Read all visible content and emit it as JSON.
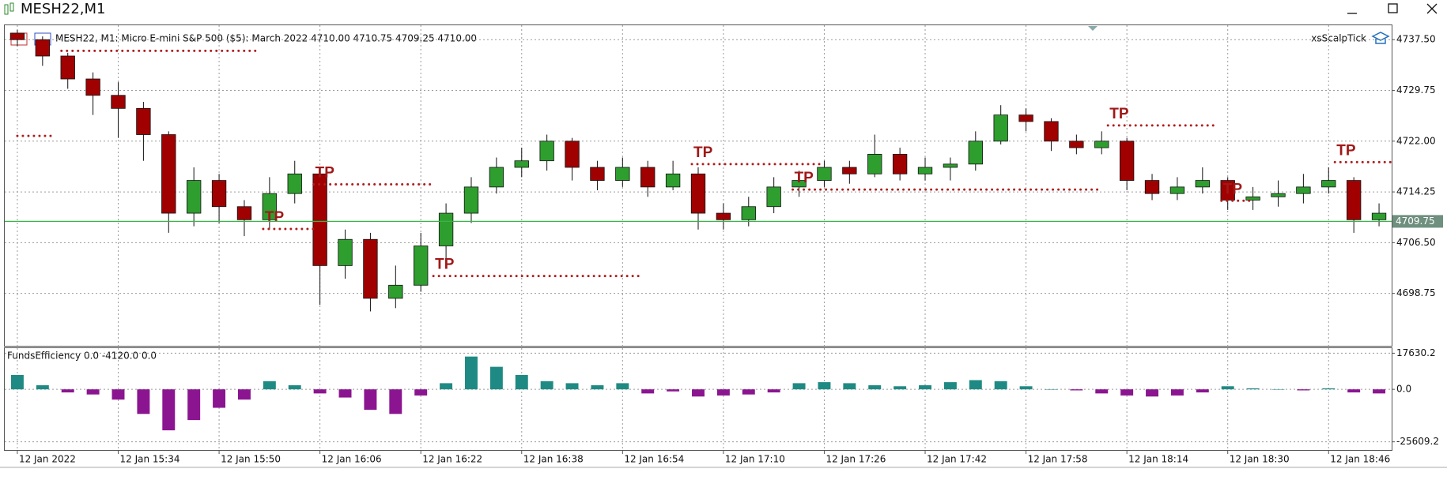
{
  "window": {
    "title": "MESH22,M1"
  },
  "chart_data": [
    {
      "type": "candlestick",
      "title": "MESH22, M1:  Micro E-mini S&P 500 ($5): March 2022  4710.00 4710.75 4709.25 4710.00",
      "expert": "xsScalpTick",
      "x": [
        0,
        4,
        8,
        12,
        16,
        20,
        24,
        28,
        32,
        36,
        40,
        44,
        48,
        52,
        56,
        60,
        64,
        68,
        72,
        76,
        80,
        84,
        88,
        92,
        96,
        100,
        104,
        108,
        112,
        116,
        120,
        124,
        128,
        132,
        136,
        140,
        144,
        148,
        152,
        156,
        160,
        164,
        168,
        172,
        176,
        180,
        184,
        188,
        192,
        196,
        200,
        204,
        208,
        212,
        216
      ],
      "open": [
        4738.5,
        4737.5,
        4735,
        4731.5,
        4729,
        4727,
        4723,
        4711,
        4716,
        4712,
        4710,
        4714,
        4717,
        4703,
        4707,
        4698,
        4700,
        4706,
        4711,
        4715,
        4718,
        4719,
        4722,
        4718,
        4716,
        4718,
        4715,
        4717,
        4711,
        4710,
        4712,
        4715,
        4716,
        4718,
        4717,
        4720,
        4717,
        4718,
        4718.5,
        4722,
        4726,
        4725,
        4722,
        4721,
        4722,
        4716,
        4714,
        4715,
        4716,
        4713,
        4713.5,
        4714,
        4715,
        4716,
        4710
      ],
      "high": [
        4739,
        4738,
        4735.5,
        4732.5,
        4731,
        4728,
        4723.5,
        4718,
        4717,
        4713,
        4716.5,
        4719,
        4717.5,
        4708.5,
        4708,
        4703,
        4708,
        4712.5,
        4716.5,
        4719.5,
        4721,
        4723,
        4722.5,
        4719,
        4719.5,
        4719,
        4719,
        4718,
        4712.5,
        4713.5,
        4716.5,
        4717.5,
        4719,
        4719,
        4723,
        4721,
        4719.5,
        4719.5,
        4723.5,
        4727.5,
        4727,
        4725.5,
        4723,
        4723.5,
        4722.5,
        4717,
        4716.5,
        4718,
        4716.5,
        4715,
        4716,
        4717,
        4718,
        4716.5,
        4712.5
      ],
      "low": [
        4736.5,
        4733.5,
        4730,
        4726,
        4722.5,
        4719,
        4708,
        4709,
        4709.5,
        4707.5,
        4708.5,
        4712.5,
        4697,
        4701,
        4696,
        4696.5,
        4699,
        4703,
        4709.5,
        4714,
        4716.5,
        4717.5,
        4716,
        4714.5,
        4715,
        4713.5,
        4714.5,
        4708.5,
        4708.5,
        4709,
        4711,
        4713.5,
        4715,
        4715.5,
        4716.5,
        4716,
        4716,
        4716,
        4717.5,
        4721.5,
        4723.5,
        4720.5,
        4720,
        4720,
        4714.5,
        4713,
        4713,
        4714,
        4711.5,
        4711.5,
        4712,
        4712.5,
        4714,
        4708,
        4709
      ],
      "close": [
        4737.5,
        4735,
        4731.5,
        4729,
        4727,
        4723,
        4711,
        4716,
        4712,
        4710,
        4714,
        4717,
        4703,
        4707,
        4698,
        4700,
        4706,
        4711,
        4715,
        4718,
        4719,
        4722,
        4718,
        4716,
        4718,
        4715,
        4717,
        4711,
        4710,
        4712,
        4715,
        4716,
        4718,
        4717,
        4720,
        4717,
        4718,
        4718.5,
        4722,
        4726,
        4725,
        4722,
        4721,
        4722,
        4716,
        4714,
        4715,
        4716,
        4713,
        4713.5,
        4714,
        4715,
        4716,
        4710,
        4711
      ],
      "up_color": "#2e9e2e",
      "down_color": "#a00000",
      "wick_color": "#111111",
      "xlim": [
        -2,
        218
      ],
      "xticks": [
        {
          "value": 0,
          "label": "12 Jan 2022"
        },
        {
          "value": 16,
          "label": "12 Jan 15:34"
        },
        {
          "value": 32,
          "label": "12 Jan 15:50"
        },
        {
          "value": 48,
          "label": "12 Jan 16:06"
        },
        {
          "value": 64,
          "label": "12 Jan 16:22"
        },
        {
          "value": 80,
          "label": "12 Jan 16:38"
        },
        {
          "value": 96,
          "label": "12 Jan 16:54"
        },
        {
          "value": 112,
          "label": "12 Jan 17:10"
        },
        {
          "value": 128,
          "label": "12 Jan 17:26"
        },
        {
          "value": 144,
          "label": "12 Jan 17:42"
        },
        {
          "value": 160,
          "label": "12 Jan 17:58"
        },
        {
          "value": 176,
          "label": "12 Jan 18:14"
        },
        {
          "value": 192,
          "label": "12 Jan 18:30"
        },
        {
          "value": 208,
          "label": "12 Jan 18:46"
        }
      ],
      "ylim": [
        4690.75,
        4739.7
      ],
      "yticks": [
        {
          "value": 4737.5,
          "label": "4737.50"
        },
        4729.75,
        {
          "value": 4722,
          "label": "4722.00"
        },
        4714.25,
        {
          "value": 4706.5,
          "label": "4706.50"
        },
        4698.75
      ],
      "grid": true,
      "last_price": 4709.75,
      "last_price_color": "#3cb34a",
      "level_color": "#b01c1c",
      "levels": [
        {
          "price": 4735.8,
          "x0": 7,
          "x1": 38
        },
        {
          "price": 4722.8,
          "x0": 0,
          "x1": 6
        },
        {
          "price": 4715.4,
          "x0": 47,
          "x1": 66,
          "label": "TP"
        },
        {
          "price": 4708.6,
          "x0": 39,
          "x1": 47,
          "label": "TP"
        },
        {
          "price": 4701.4,
          "x0": 66,
          "x1": 99,
          "label": "TP"
        },
        {
          "price": 4718.5,
          "x0": 107,
          "x1": 128,
          "label": "TP"
        },
        {
          "price": 4714.6,
          "x0": 123,
          "x1": 172,
          "label": "TP"
        },
        {
          "price": 4724.4,
          "x0": 173,
          "x1": 190,
          "label": "TP"
        },
        {
          "price": 4712.9,
          "x0": 191,
          "x1": 196,
          "label": "TP"
        },
        {
          "price": 4718.8,
          "x0": 209,
          "x1": 218,
          "label": "TP"
        }
      ]
    },
    {
      "type": "bar",
      "title": "FundsEfficiency 0.0 -4120.0 0.0",
      "x": [
        0,
        4,
        8,
        12,
        16,
        20,
        24,
        28,
        32,
        36,
        40,
        44,
        48,
        52,
        56,
        60,
        64,
        68,
        72,
        76,
        80,
        84,
        88,
        92,
        96,
        100,
        104,
        108,
        112,
        116,
        120,
        124,
        128,
        132,
        136,
        140,
        144,
        148,
        152,
        156,
        160,
        164,
        168,
        172,
        176,
        180,
        184,
        188,
        192,
        196,
        200,
        204,
        208,
        212,
        216
      ],
      "values": [
        7000,
        2000,
        -1500,
        -2500,
        -5000,
        -12000,
        -20000,
        -15000,
        -9000,
        -5000,
        4000,
        2000,
        -2000,
        -4000,
        -10000,
        -12000,
        -3000,
        3000,
        16000,
        11000,
        7000,
        4000,
        3000,
        2000,
        3000,
        -2000,
        -1000,
        -3500,
        -3000,
        -2500,
        -1500,
        3000,
        3500,
        3000,
        2000,
        1500,
        2000,
        3500,
        4500,
        4000,
        1500,
        0,
        -500,
        -2000,
        -3000,
        -3500,
        -3000,
        -1500,
        1500,
        500,
        0,
        -500,
        500,
        -1500,
        -2000
      ],
      "pos_color": "#1f8a84",
      "neg_color": "#8b1590",
      "xlim": [
        -2,
        218
      ],
      "ylim": [
        -29600,
        20100
      ],
      "yticks": [
        17630.2,
        {
          "value": 0,
          "label": "0.0"
        },
        -25609.2
      ],
      "grid": true
    }
  ]
}
